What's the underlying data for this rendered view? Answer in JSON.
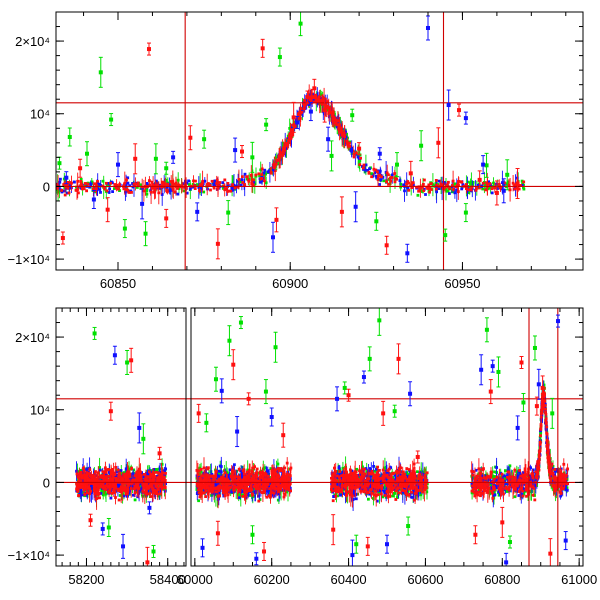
{
  "chart_data": [
    {
      "type": "scatter",
      "title": "",
      "xlabel": "",
      "ylabel": "",
      "xlim": [
        60832,
        60985
      ],
      "ylim": [
        -11500,
        24000
      ],
      "x_ticks": [
        60850,
        60900,
        60950
      ],
      "x_tick_labels": [
        "60850",
        "60900",
        "60950"
      ],
      "y_ticks": [
        -10000,
        0,
        10000,
        20000
      ],
      "y_tick_labels": [
        "−1×10⁴",
        "0",
        "10⁴",
        "2×10⁴"
      ],
      "vertical_lines": [
        60869.5,
        60944.5
      ],
      "horizontal_lines": [
        0,
        11500
      ],
      "reference_line_color": "#d00000",
      "series": [
        {
          "name": "green",
          "color": "#00e000",
          "x": [
            60833,
            60836,
            60841,
            60845,
            60848,
            60852,
            60858,
            60861,
            60864,
            60875,
            60882,
            60889,
            60893,
            60897,
            60903,
            60912,
            60918,
            60925,
            60931,
            60938,
            60945,
            60951,
            60957,
            60963
          ],
          "y": [
            3200,
            6800,
            4500,
            15700,
            9200,
            -5800,
            -6500,
            3800,
            2500,
            6500,
            -3600,
            4000,
            8500,
            17800,
            22400,
            4200,
            9800,
            -4800,
            3000,
            5600,
            -6700,
            -3600,
            2900,
            1600
          ]
        },
        {
          "name": "blue",
          "color": "#1010ff",
          "x": [
            60835,
            60843,
            60850,
            60857,
            60866,
            60873,
            60884,
            60895,
            60902,
            60906,
            60911,
            60919,
            60926,
            60934,
            60940,
            60946,
            60951,
            60956,
            60962
          ],
          "y": [
            1200,
            -1800,
            3000,
            -2400,
            4000,
            -3500,
            5000,
            -7000,
            8800,
            10300,
            6500,
            -2800,
            4500,
            -9200,
            21800,
            11200,
            9400,
            3000,
            -600
          ]
        },
        {
          "name": "red",
          "color": "#ff1010",
          "x": [
            60834,
            60839,
            60847,
            60855,
            60859,
            60864,
            60871,
            60879,
            60886,
            60892,
            60896,
            60901,
            60905,
            60907,
            60910,
            60915,
            60920,
            60928,
            60935,
            60943,
            60949,
            60955,
            60960,
            60966
          ],
          "y": [
            -7100,
            2500,
            -3200,
            3800,
            18900,
            -4400,
            6700,
            -7900,
            4800,
            19000,
            -4600,
            9500,
            12300,
            13500,
            10500,
            -3500,
            5200,
            -8100,
            1800,
            6000,
            10500,
            900,
            -900,
            400
          ]
        }
      ]
    },
    {
      "type": "scatter",
      "title": "",
      "xlabel": "",
      "ylabel": "",
      "x_axis": "broken",
      "segments": [
        {
          "xlim": [
            58125,
            58445
          ],
          "x_ticks": [
            58200,
            58400
          ],
          "x_tick_labels": [
            "58200",
            "58400"
          ]
        },
        {
          "xlim": [
            59990,
            61010
          ],
          "x_ticks": [
            60000,
            60200,
            60400,
            60600,
            60800,
            61000
          ],
          "x_tick_labels": [
            "60000",
            "60200",
            "60400",
            "60600",
            "60800",
            "61000"
          ]
        }
      ],
      "ylim": [
        -11500,
        24000
      ],
      "y_ticks": [
        -10000,
        0,
        10000,
        20000
      ],
      "y_tick_labels": [
        "−1×10⁴",
        "0",
        "10⁴",
        "2×10⁴"
      ],
      "vertical_lines": [
        60869.5,
        60944.5
      ],
      "horizontal_lines": [
        0,
        11500
      ],
      "reference_line_color": "#d00000",
      "series": [
        {
          "name": "green",
          "color": "#00e000",
          "x": [
            58220,
            58255,
            58300,
            58340,
            58365,
            60030,
            60055,
            60090,
            60120,
            60150,
            60185,
            60210,
            60390,
            60420,
            60455,
            60480,
            60520,
            60555,
            60760,
            60790,
            60820,
            60855,
            60885,
            60930
          ],
          "y": [
            20500,
            -6200,
            16500,
            6000,
            -9500,
            8200,
            14200,
            19500,
            22000,
            -7200,
            12500,
            18600,
            13000,
            -8500,
            17000,
            22300,
            9800,
            -6000,
            21000,
            15200,
            -8200,
            11000,
            18500,
            9500
          ]
        },
        {
          "name": "blue",
          "color": "#1010ff",
          "x": [
            58240,
            58270,
            58290,
            58330,
            58355,
            60020,
            60070,
            60110,
            60160,
            60200,
            60370,
            60410,
            60440,
            60500,
            60560,
            60745,
            60775,
            60810,
            60840,
            60895,
            60945,
            60965
          ],
          "y": [
            -6400,
            17500,
            -8800,
            7500,
            -3500,
            -9000,
            12600,
            7000,
            -10500,
            9000,
            11500,
            -10000,
            14500,
            -8500,
            12200,
            15500,
            16000,
            -11000,
            7500,
            13500,
            22200,
            -8000
          ]
        },
        {
          "name": "red",
          "color": "#ff1010",
          "x": [
            58210,
            58260,
            58310,
            58350,
            58380,
            60010,
            60060,
            60100,
            60140,
            60180,
            60230,
            60360,
            60400,
            60450,
            60490,
            60530,
            60580,
            60730,
            60770,
            60800,
            60850,
            60890,
            60905,
            60925
          ],
          "y": [
            -5200,
            9800,
            16800,
            -11000,
            4000,
            9500,
            -7000,
            16200,
            11500,
            -9500,
            6500,
            -6500,
            12000,
            -8800,
            9500,
            17000,
            3500,
            -7200,
            12500,
            -5500,
            16500,
            10500,
            13000,
            -9800
          ]
        }
      ]
    }
  ]
}
